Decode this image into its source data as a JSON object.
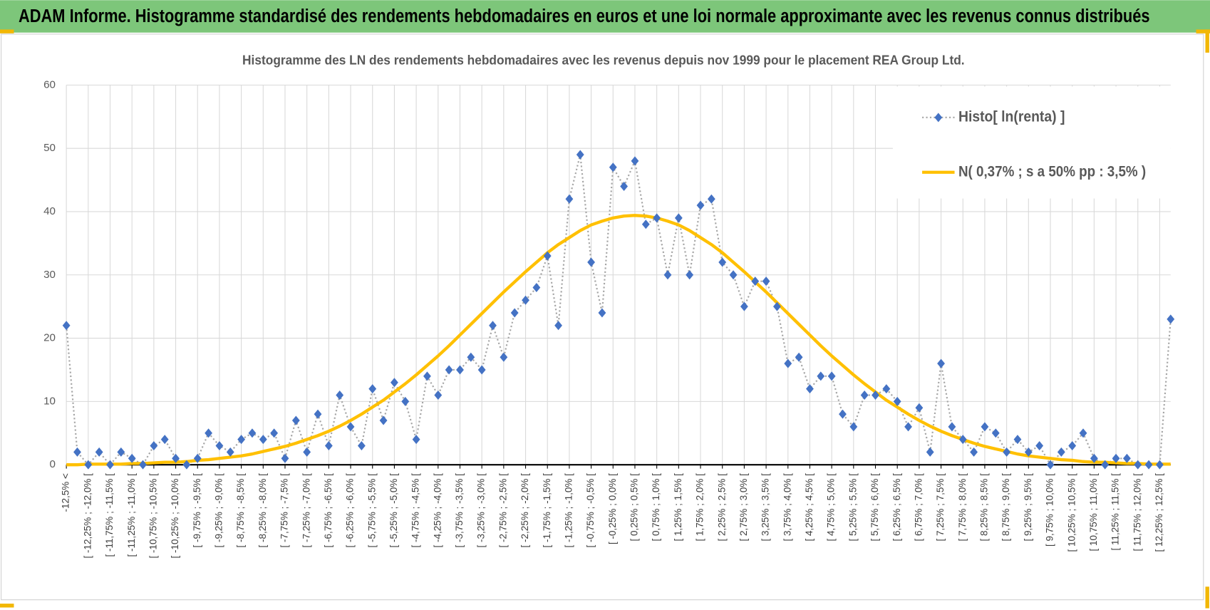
{
  "header": {
    "title": "ADAM Informe. Histogramme standardisé des rendements hebdomadaires en euros et une loi normale approximante avec les revenus connus distribués"
  },
  "chart_data": {
    "type": "line",
    "title": "Histogramme des LN des rendements hebdomadaires avec les revenus depuis nov 1999 pour le placement REA Group Ltd.",
    "categories": [
      "-12,5% <",
      null,
      "[ -12,25% ; -12,0% [",
      null,
      "[ -11,75% ; -11,5% [",
      null,
      "[ -11,25% ; -11,0% [",
      null,
      "[ -10,75% ; -10,5% [",
      null,
      "[ -10,25% ; -10,0% [",
      null,
      "[ -9,75% ; -9,5% [",
      null,
      "[ -9,25% ; -9,0% [",
      null,
      "[ -8,75% ; -8,5% [",
      null,
      "[ -8,25% ; -8,0% [",
      null,
      "[ -7,75% ; -7,5% [",
      null,
      "[ -7,25% ; -7,0% [",
      null,
      "[ -6,75% ; -6,5% [",
      null,
      "[ -6,25% ; -6,0% [",
      null,
      "[ -5,75% ; -5,5% [",
      null,
      "[ -5,25% ; -5,0% [",
      null,
      "[ -4,75% ; -4,5% [",
      null,
      "[ -4,25% ; -4,0% [",
      null,
      "[ -3,75% ; -3,5% [",
      null,
      "[ -3,25% ; -3,0% [",
      null,
      "[ -2,75% ; -2,5% [",
      null,
      "[ -2,25% ; -2,0% [",
      null,
      "[ -1,75% ; -1,5% [",
      null,
      "[ -1,25% ; -1,0% [",
      null,
      "[ -0,75% ; -0,5% [",
      null,
      "[ -0,25% ; 0,0% [",
      null,
      "[ 0,25% ; 0,5% [",
      null,
      "[ 0,75% ; 1,0% [",
      null,
      "[ 1,25% ; 1,5% [",
      null,
      "[ 1,75% ; 2,0% [",
      null,
      "[ 2,25% ; 2,5% [",
      null,
      "[ 2,75% ; 3,0% [",
      null,
      "[ 3,25% ; 3,5% [",
      null,
      "[ 3,75% ; 4,0% [",
      null,
      "[ 4,25% ; 4,5% [",
      null,
      "[ 4,75% ; 5,0% [",
      null,
      "[ 5,25% ; 5,5% [",
      null,
      "[ 5,75% ; 6,0% [",
      null,
      "[ 6,25% ; 6,5% [",
      null,
      "[ 6,75% ; 7,0% [",
      null,
      "[ 7,25% ; 7,5% [",
      null,
      "[ 7,75% ; 8,0% [",
      null,
      "[ 8,25% ; 8,5% [",
      null,
      "[ 8,75% ; 9,0% [",
      null,
      "[ 9,25% ; 9,5% [",
      null,
      "[ 9,75% ; 10,0% [",
      null,
      "[ 10,25% ; 10,5% [",
      null,
      "[ 10,75% ; 11,0% [",
      null,
      "[ 11,25% ; 11,5% [",
      null,
      "[ 11,75% ; 12,0% [",
      null,
      "[ 12,25% ; 12,5% [",
      null
    ],
    "series": [
      {
        "name": "Histo[ ln(renta) ]",
        "color": "#4472c4",
        "values": [
          22,
          2,
          0,
          2,
          0,
          2,
          1,
          0,
          3,
          4,
          1,
          0,
          1,
          5,
          3,
          2,
          4,
          5,
          4,
          5,
          1,
          7,
          2,
          8,
          3,
          11,
          6,
          3,
          12,
          7,
          13,
          10,
          4,
          14,
          11,
          15,
          15,
          17,
          15,
          22,
          17,
          24,
          26,
          28,
          33,
          22,
          42,
          49,
          32,
          24,
          47,
          44,
          48,
          38,
          39,
          30,
          39,
          30,
          41,
          42,
          32,
          30,
          25,
          29,
          29,
          25,
          16,
          17,
          12,
          14,
          14,
          8,
          6,
          11,
          11,
          12,
          10,
          6,
          9,
          2,
          16,
          6,
          4,
          2,
          6,
          5,
          2,
          4,
          2,
          3,
          0,
          2,
          3,
          5,
          1,
          0,
          1,
          1,
          0,
          0,
          0,
          23
        ]
      },
      {
        "name": "N( 0,37% ; s a 50% pp : 3,5% )",
        "color": "#ffc000",
        "values": [
          0.0,
          0.0,
          0.1,
          0.1,
          0.1,
          0.1,
          0.2,
          0.2,
          0.3,
          0.4,
          0.4,
          0.5,
          0.7,
          0.8,
          1.0,
          1.2,
          1.4,
          1.7,
          2.1,
          2.5,
          2.9,
          3.4,
          4.0,
          4.6,
          5.3,
          6.1,
          7.0,
          8.0,
          9.1,
          10.2,
          11.5,
          12.8,
          14.2,
          15.7,
          17.2,
          18.8,
          20.5,
          22.2,
          23.9,
          25.6,
          27.3,
          28.9,
          30.5,
          32.0,
          33.5,
          34.8,
          35.9,
          37.0,
          37.9,
          38.5,
          39.0,
          39.3,
          39.4,
          39.3,
          39.0,
          38.5,
          37.9,
          37.0,
          35.9,
          34.8,
          33.5,
          32.0,
          30.5,
          28.9,
          27.3,
          25.6,
          23.9,
          22.2,
          20.5,
          18.8,
          17.2,
          15.7,
          14.2,
          12.8,
          11.5,
          10.2,
          9.1,
          8.0,
          7.0,
          6.1,
          5.3,
          4.6,
          4.0,
          3.4,
          2.9,
          2.5,
          2.1,
          1.7,
          1.4,
          1.2,
          1.0,
          0.8,
          0.7,
          0.5,
          0.4,
          0.4,
          0.3,
          0.2,
          0.2,
          0.1,
          0.1,
          0.1
        ]
      }
    ],
    "ylim": [
      0,
      60
    ],
    "yticks": [
      0,
      10,
      20,
      30,
      40,
      50,
      60
    ],
    "grid": true,
    "legend": "upper right"
  }
}
